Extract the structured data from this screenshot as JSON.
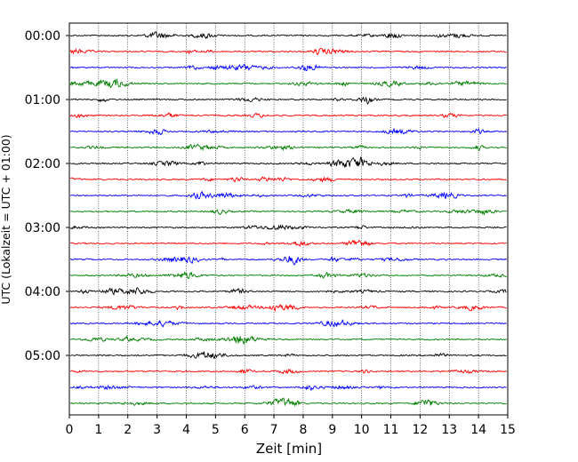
{
  "chart_data": {
    "type": "line",
    "title": "",
    "xlabel": "Zeit  [min]",
    "ylabel": "UTC (Lokalzeit = UTC + 01:00)",
    "xlim": [
      0,
      15
    ],
    "x_ticks": [
      "0",
      "1",
      "2",
      "3",
      "4",
      "5",
      "6",
      "7",
      "8",
      "9",
      "10",
      "11",
      "12",
      "13",
      "14",
      "15"
    ],
    "y_ticks": [
      "00:00",
      "01:00",
      "02:00",
      "03:00",
      "04:00",
      "05:00"
    ],
    "grid": "vertical dotted",
    "trace_count": 24,
    "trace_colors": [
      "#000000",
      "#ff0000",
      "#0000ff",
      "#007f00"
    ]
  }
}
